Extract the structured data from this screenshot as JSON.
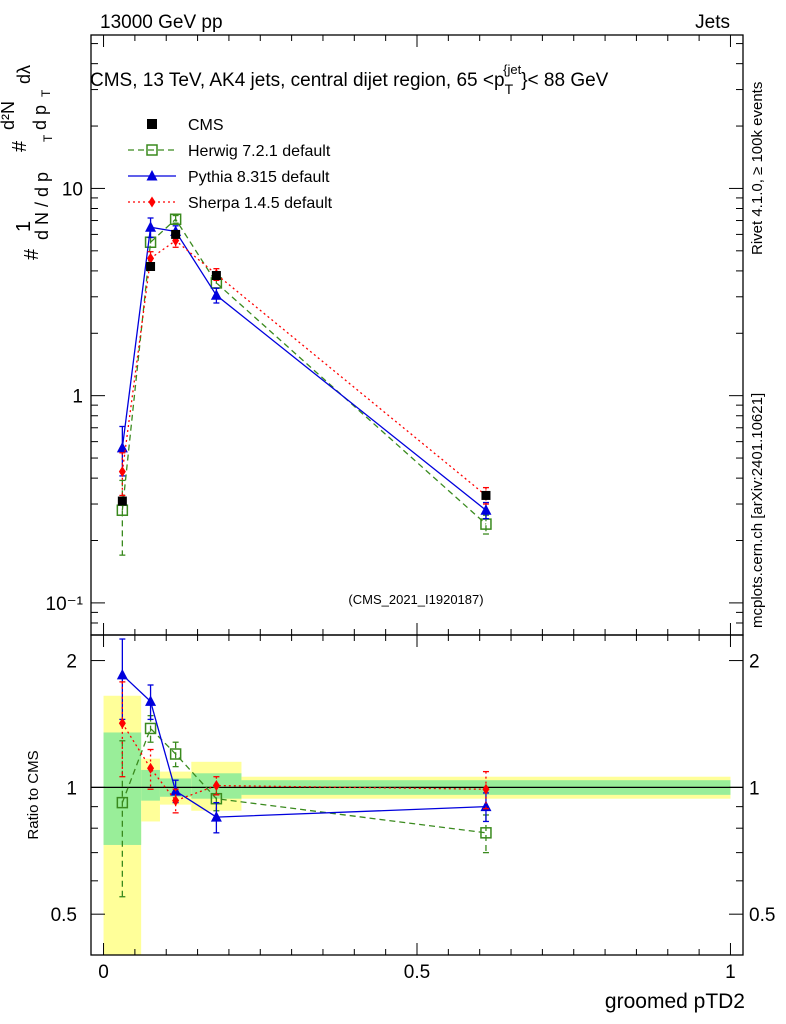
{
  "header": {
    "left": "13000 GeV pp",
    "right": "Jets"
  },
  "chart_data": {
    "type": "line",
    "title": "CMS, 13 TeV, AK4 jets, central dijet region, 65 <p_T^{jet}< 88 GeV",
    "title_parts": {
      "pre": "CMS, 13 TeV, AK4 jets, central dijet region, 65 <p",
      "sup": "{jet",
      "sub": "T",
      "post": "}< 88 GeV"
    },
    "xlabel": "groomed pTD2",
    "ylabel_main": "1/N dN/dp_T dλ",
    "ylabel_parts": {
      "one": "1",
      "hash": "#",
      "d2N": "d²N",
      "lower": "d N / d p",
      "sub": "T",
      "upper_rest": "d p",
      "lambda": "dλ"
    },
    "ylabel_ratio": "Ratio to CMS",
    "watermark": "(CMS_2021_I1920187)",
    "side_label_top": "Rivet 4.1.0, ≥ 100k events",
    "side_label_bottom": "mcplots.cern.ch [arXiv:2401.10621]",
    "xlim": [
      -0.02,
      1.02
    ],
    "ylim_main": [
      0.07,
      55
    ],
    "ylim_ratio": [
      0.4,
      2.3
    ],
    "x_ticks": [
      {
        "value": 0,
        "label": "0"
      },
      {
        "value": 0.5,
        "label": "0.5"
      },
      {
        "value": 1,
        "label": "1"
      }
    ],
    "y_ticks_main": [
      {
        "value": 10,
        "label": "10"
      },
      {
        "value": 1,
        "label": "1"
      },
      {
        "value": 0.1,
        "label": "10⁻¹"
      }
    ],
    "y_ticks_ratio": [
      {
        "value": 2,
        "label": "2"
      },
      {
        "value": 1,
        "label": "1"
      },
      {
        "value": 0.5,
        "label": "0.5"
      }
    ],
    "bins": [
      {
        "lo": 0.0,
        "hi": 0.06
      },
      {
        "lo": 0.06,
        "hi": 0.09
      },
      {
        "lo": 0.09,
        "hi": 0.14
      },
      {
        "lo": 0.14,
        "hi": 0.22
      },
      {
        "lo": 0.22,
        "hi": 1.0
      }
    ],
    "x": [
      0.03,
      0.075,
      0.115,
      0.18,
      0.61
    ],
    "data": {
      "name": "CMS",
      "values": [
        0.31,
        4.2,
        6.0,
        3.8,
        0.33
      ],
      "band_stat": [
        [
          0.73,
          1.35
        ],
        [
          0.93,
          1.1
        ],
        [
          0.95,
          1.05
        ],
        [
          0.94,
          1.08
        ],
        [
          0.96,
          1.04
        ]
      ],
      "band_total": [
        [
          0.4,
          1.65
        ],
        [
          0.83,
          1.17
        ],
        [
          0.91,
          1.09
        ],
        [
          0.88,
          1.15
        ],
        [
          0.94,
          1.06
        ]
      ]
    },
    "series": [
      {
        "name": "Herwig 7.2.1 default",
        "color": "#3a8a1e",
        "dash": "6,4",
        "marker": "open-square",
        "values": [
          0.28,
          5.5,
          7.1,
          3.5,
          0.24
        ],
        "err": [
          0.11,
          0.3,
          0.3,
          0.2,
          0.025
        ],
        "ratio": [
          0.92,
          1.38,
          1.2,
          0.94,
          0.78
        ],
        "ratio_err": [
          0.37,
          0.1,
          0.08,
          0.06,
          0.08
        ]
      },
      {
        "name": "Pythia 8.315 default",
        "color": "#0000dd",
        "dash": "",
        "marker": "triangle",
        "values": [
          0.56,
          6.5,
          6.2,
          3.05,
          0.28
        ],
        "err": [
          0.15,
          0.7,
          0.4,
          0.25,
          0.025
        ],
        "ratio": [
          1.85,
          1.6,
          0.98,
          0.85,
          0.9
        ],
        "ratio_err": [
          0.4,
          0.15,
          0.06,
          0.07,
          0.07
        ]
      },
      {
        "name": "Sherpa 1.4.5 default",
        "color": "#ff0000",
        "dash": "2,3",
        "marker": "diamond",
        "values": [
          0.43,
          4.6,
          5.6,
          3.85,
          0.33
        ],
        "err": [
          0.1,
          0.35,
          0.4,
          0.25,
          0.03
        ],
        "ratio": [
          1.42,
          1.11,
          0.93,
          1.01,
          0.99
        ],
        "ratio_err": [
          0.36,
          0.12,
          0.06,
          0.05,
          0.1
        ]
      }
    ]
  }
}
